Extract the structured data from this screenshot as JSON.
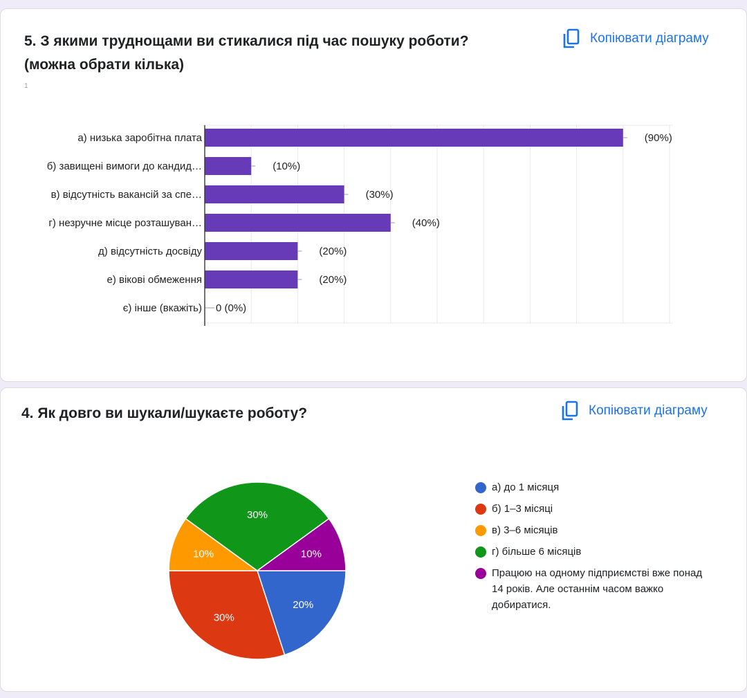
{
  "copy_label": "Копіювати діаграму",
  "question5": {
    "title": "5. З якими труднощами ви стикалися під час пошуку роботи? (можна обрати кілька)",
    "mark": "1"
  },
  "question4": {
    "title": "4. Як довго ви шукали/шукаєте роботу?"
  },
  "colors": {
    "bar": "#673ab7",
    "link": "#1a73e8",
    "pie": [
      "#3366cc",
      "#dc3912",
      "#ff9900",
      "#109618",
      "#990099"
    ]
  },
  "chart_data": [
    {
      "type": "bar",
      "orientation": "horizontal",
      "categories": [
        "а) низька заробітна плата",
        "б) завищені вимоги до кандид…",
        "в) відсутність вакансій за спе…",
        "г) незручне місце розташуван…",
        "д) відсутність досвіду",
        "е) вікові обмеження",
        "є) інше (вкажіть)"
      ],
      "values": [
        9,
        1,
        3,
        4,
        2,
        2,
        0
      ],
      "value_labels": [
        "(90%)",
        "(10%)",
        "(30%)",
        "(40%)",
        "(20%)",
        "(20%)",
        "0 (0%)"
      ],
      "xlim": [
        0,
        10
      ],
      "grid": true
    },
    {
      "type": "pie",
      "categories": [
        "а) до 1 місяця",
        "б) 1–3 місяці",
        "в) 3–6 місяців",
        "г) більше 6 місяців",
        "Працюю на одному підприємстві вже понад 14 років. Але останнім часом важко добиратися."
      ],
      "values": [
        20,
        30,
        10,
        30,
        10
      ],
      "slice_labels": [
        "20%",
        "30%",
        "10%",
        "30%",
        "10%"
      ],
      "legend": "right"
    }
  ]
}
